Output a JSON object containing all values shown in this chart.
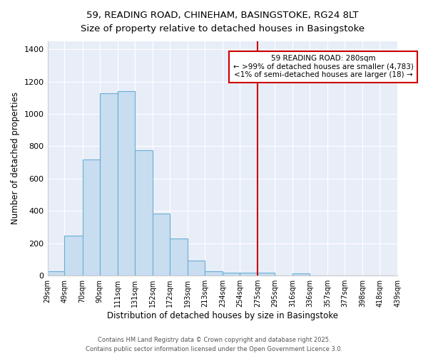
{
  "title_line1": "59, READING ROAD, CHINEHAM, BASINGSTOKE, RG24 8LT",
  "title_line2": "Size of property relative to detached houses in Basingstoke",
  "xlabel": "Distribution of detached houses by size in Basingstoke",
  "ylabel": "Number of detached properties",
  "bin_labels": [
    "29sqm",
    "49sqm",
    "70sqm",
    "90sqm",
    "111sqm",
    "131sqm",
    "152sqm",
    "172sqm",
    "193sqm",
    "213sqm",
    "234sqm",
    "254sqm",
    "275sqm",
    "295sqm",
    "316sqm",
    "336sqm",
    "357sqm",
    "377sqm",
    "398sqm",
    "418sqm",
    "439sqm"
  ],
  "bin_edges": [
    29,
    49,
    70,
    90,
    111,
    131,
    152,
    172,
    193,
    213,
    234,
    254,
    275,
    295,
    316,
    336,
    357,
    377,
    398,
    418,
    439
  ],
  "bar_heights": [
    25,
    245,
    720,
    1130,
    1140,
    775,
    385,
    230,
    95,
    25,
    20,
    20,
    20,
    0,
    15,
    0,
    0,
    0,
    0,
    0
  ],
  "bar_facecolor": "#c8ddf0",
  "bar_edgecolor": "#6aaed6",
  "vline_x": 275,
  "vline_color": "#cc0000",
  "ylim": [
    0,
    1450
  ],
  "yticks": [
    0,
    200,
    400,
    600,
    800,
    1000,
    1200,
    1400
  ],
  "bg_color": "#e8eef8",
  "grid_color": "#ffffff",
  "annotation_text": "59 READING ROAD: 280sqm\n← >99% of detached houses are smaller (4,783)\n<1% of semi-detached houses are larger (18) →",
  "annotation_box_edgecolor": "#cc0000",
  "fig_bg_color": "#ffffff",
  "footer_line1": "Contains HM Land Registry data © Crown copyright and database right 2025.",
  "footer_line2": "Contains public sector information licensed under the Open Government Licence 3.0."
}
